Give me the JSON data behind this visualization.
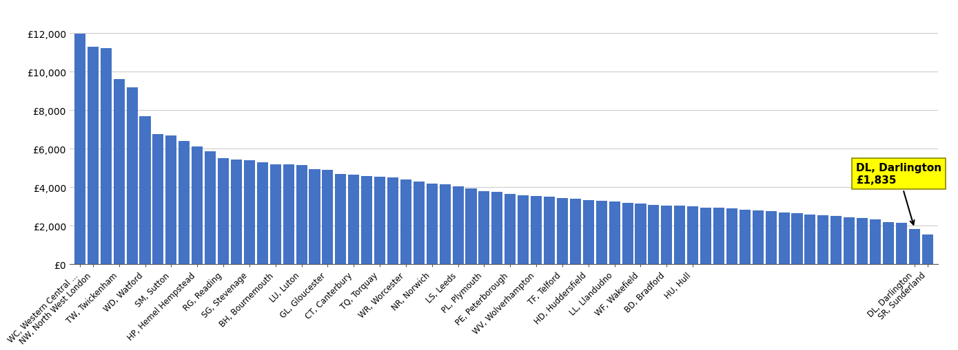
{
  "values": [
    11950,
    11300,
    11200,
    9600,
    9200,
    7700,
    6750,
    6700,
    6400,
    6100,
    5850,
    5500,
    5450,
    5400,
    5300,
    5200,
    5200,
    5150,
    4950,
    4900,
    4700,
    4650,
    4600,
    4550,
    4500,
    4400,
    4300,
    4200,
    4150,
    4050,
    3950,
    3800,
    3750,
    3650,
    3600,
    3550,
    3500,
    3450,
    3400,
    3350,
    3300,
    3250,
    3200,
    3150,
    3100,
    3050,
    3050,
    3000,
    2950,
    2950,
    2900,
    2850,
    2800,
    2750,
    2700,
    2650,
    2600,
    2550,
    2500,
    2450,
    2400,
    2350,
    2200,
    2150,
    1835,
    1550
  ],
  "xtick_labels": [
    "WC, Western Central ...",
    "NW, North West London",
    "TW, Twickenham",
    "WD, Watford",
    "SM, Sutton",
    "HP, Hemel Hempstead",
    "RG, Reading",
    "SG, Stevenage",
    "BH, Bournemouth",
    "LU, Luton",
    "GL, Gloucester",
    "CT, Canterbury",
    "TQ, Torquay",
    "WR, Worcester",
    "NR, Norwich",
    "LS, Leeds",
    "PL, Plymouth",
    "PE, Peterborough",
    "WV, Wolverhampton",
    "TF, Telford",
    "HD, Huddersfield",
    "LL, Llandudno",
    "WF, Wakefield",
    "BD, Bradford",
    "HU, Hull",
    "DL, Darlington",
    "SR, Sunderland"
  ],
  "xtick_positions": [
    0,
    1,
    3,
    5,
    7,
    9,
    11,
    13,
    15,
    17,
    19,
    21,
    23,
    25,
    27,
    29,
    31,
    33,
    35,
    37,
    39,
    41,
    43,
    45,
    47,
    64,
    65
  ],
  "bar_color": "#4472c4",
  "highlight_index": 64,
  "annotation_text": "DL, Darlington\n£1,835",
  "annotation_bg": "#ffff00",
  "yticks": [
    0,
    2000,
    4000,
    6000,
    8000,
    10000,
    12000
  ],
  "ytick_labels": [
    "£0",
    "£2,000",
    "£4,000",
    "£6,000",
    "£8,000",
    "£10,000",
    "£12,000"
  ],
  "bg_color": "#ffffff",
  "grid_color": "#cccccc"
}
